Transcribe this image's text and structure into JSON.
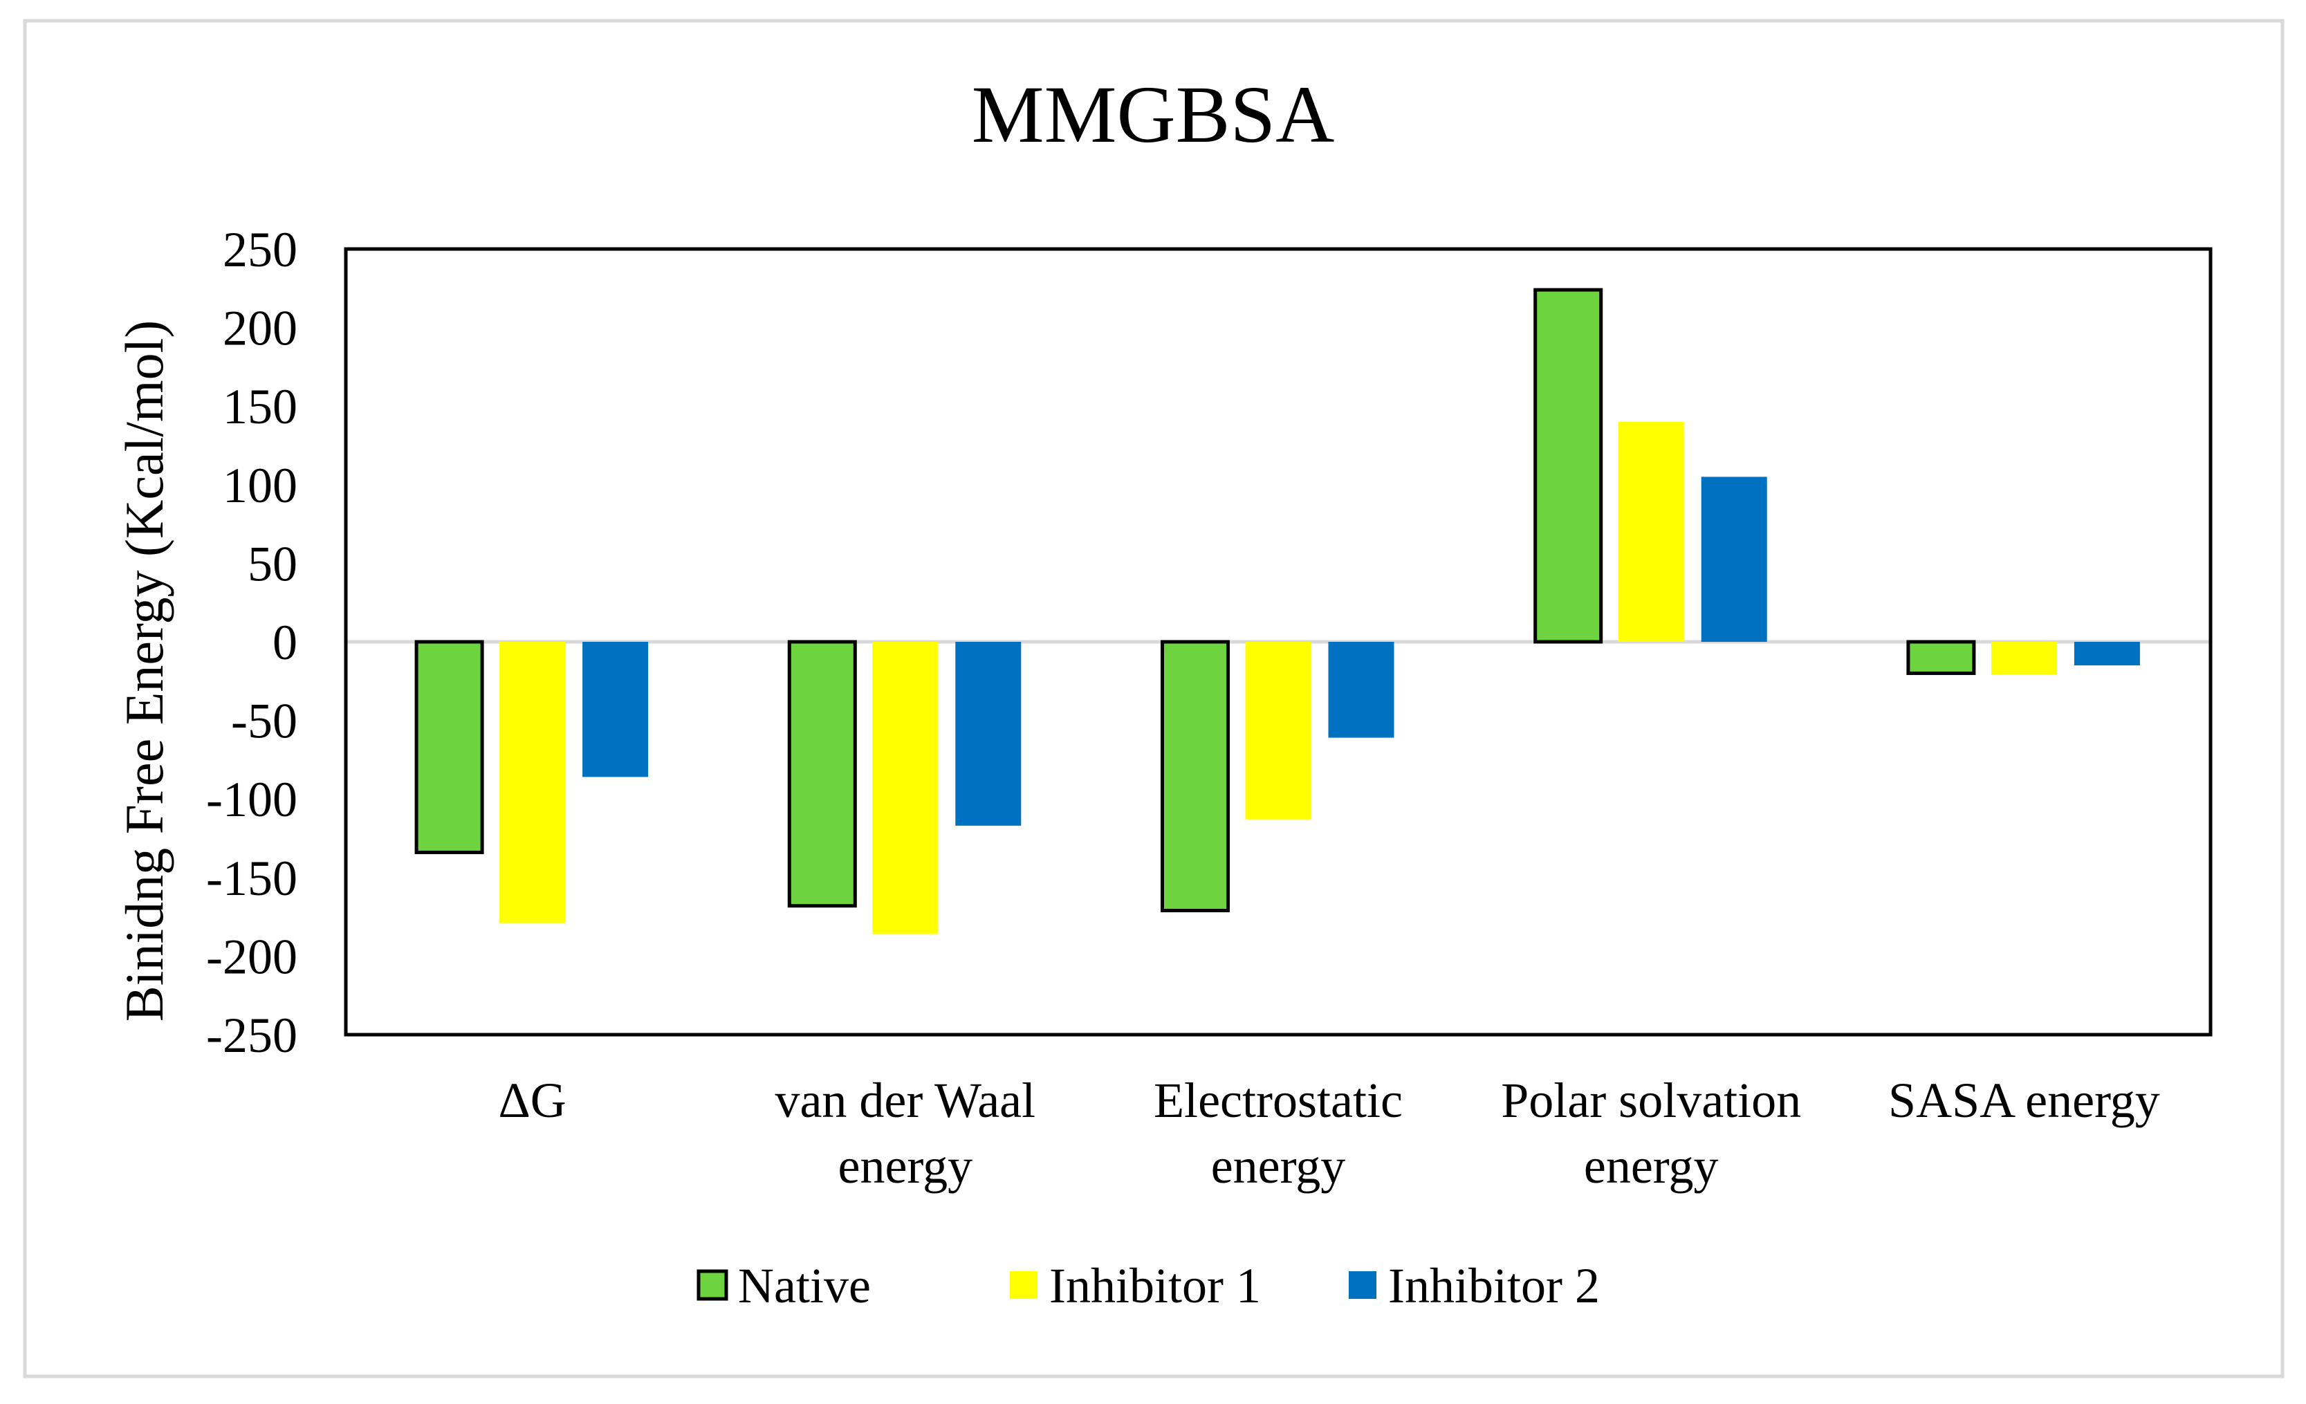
{
  "chart_data": {
    "type": "bar",
    "title": "MMGBSA",
    "xlabel": "",
    "ylabel": "Binidng Free Energy (Kcal/mol)",
    "ylim": [
      -250,
      250
    ],
    "yticks": [
      250,
      200,
      150,
      100,
      50,
      0,
      -50,
      -100,
      -150,
      -200,
      -250
    ],
    "grid": false,
    "legend_position": "bottom",
    "categories": [
      [
        "ΔG"
      ],
      [
        "van der Waal",
        "energy"
      ],
      [
        "Electrostatic",
        "energy"
      ],
      [
        "Polar solvation",
        "energy"
      ],
      [
        "SASA energy"
      ]
    ],
    "series": [
      {
        "name": "Native",
        "color": "#6dd33f",
        "outlined": true,
        "values": [
          -134,
          -168,
          -171,
          224,
          -20
        ]
      },
      {
        "name": "Inhibitor 1",
        "color": "#ffff00",
        "outlined": false,
        "values": [
          -179,
          -186,
          -113,
          140,
          -21
        ]
      },
      {
        "name": "Inhibitor 2",
        "color": "#0070c0",
        "outlined": false,
        "values": [
          -86,
          -117,
          -61,
          105,
          -15
        ]
      }
    ]
  }
}
